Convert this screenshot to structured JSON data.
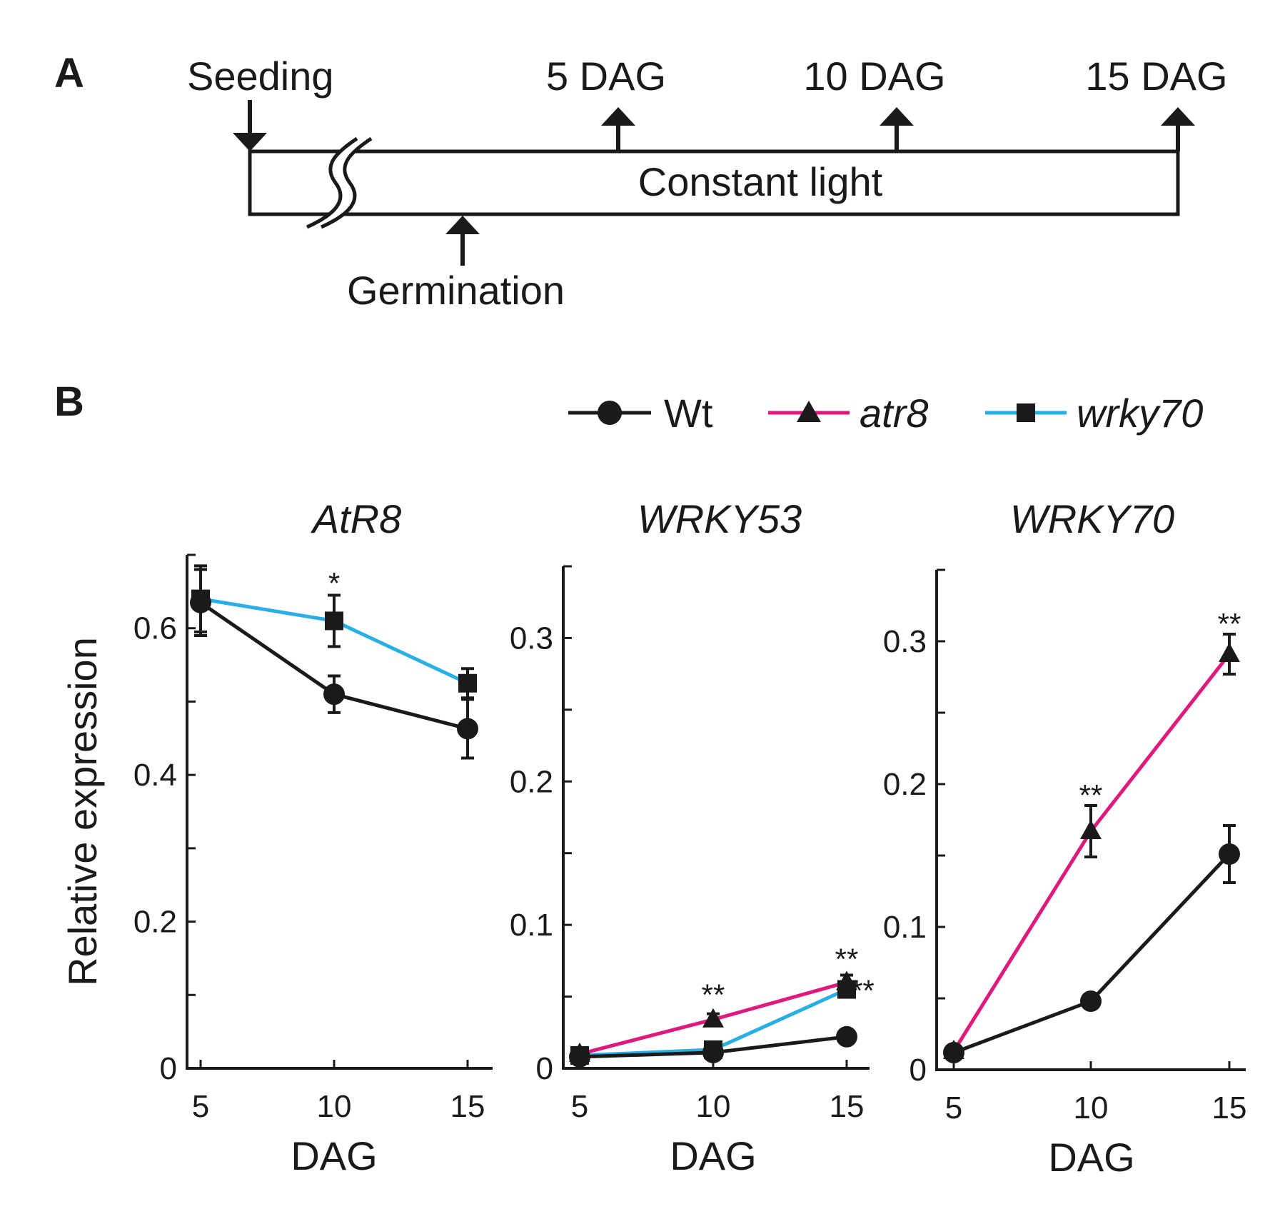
{
  "panel_a": {
    "letter": "A",
    "seeding_label": "Seeding",
    "germination_label": "Germination",
    "bar_label": "Constant light",
    "timepoints": [
      "5 DAG",
      "10 DAG",
      "15 DAG"
    ]
  },
  "panel_b": {
    "letter": "B",
    "legend": [
      {
        "name": "Wt",
        "italic": false
      },
      {
        "name": "atr8",
        "italic": true
      },
      {
        "name": "wrky70",
        "italic": true
      }
    ]
  },
  "colors": {
    "wt": "#1a1a1a",
    "atr8": "#e0197d",
    "wrky70": "#29aee6",
    "axis": "#1a1a1a"
  },
  "chart_data": [
    {
      "type": "line",
      "title": "AtR8",
      "xlabel": "DAG",
      "ylabel": "Relative expression",
      "x": [
        5,
        10,
        15
      ],
      "ylim": [
        0,
        0.7
      ],
      "yticks": [
        0,
        0.2,
        0.4,
        0.6
      ],
      "ytick_labels": [
        "0",
        "0.2",
        "0.4",
        "0.6"
      ],
      "series": [
        {
          "name": "wrky70",
          "values": [
            0.64,
            0.61,
            0.525
          ],
          "errors": [
            0.045,
            0.035,
            0.02
          ]
        },
        {
          "name": "Wt",
          "values": [
            0.635,
            0.51,
            0.463
          ],
          "errors": [
            0.045,
            0.025,
            0.04
          ]
        }
      ],
      "annotations": [
        {
          "x": 10,
          "y": 0.665,
          "text": "*"
        }
      ]
    },
    {
      "type": "line",
      "title": "WRKY53",
      "xlabel": "DAG",
      "ylabel": "",
      "x": [
        5,
        10,
        15
      ],
      "ylim": [
        0,
        0.35
      ],
      "yticks": [
        0,
        0.1,
        0.2,
        0.3
      ],
      "ytick_labels": [
        "0",
        "0.1",
        "0.2",
        "0.3"
      ],
      "series": [
        {
          "name": "atr8",
          "values": [
            0.01,
            0.034,
            0.06
          ],
          "errors": [
            0.004,
            0.004,
            0.005
          ]
        },
        {
          "name": "wrky70",
          "values": [
            0.009,
            0.013,
            0.055
          ],
          "errors": [
            0.004,
            0.004,
            0.004
          ]
        },
        {
          "name": "Wt",
          "values": [
            0.008,
            0.011,
            0.022
          ],
          "errors": [
            0.003,
            0.003,
            0.003
          ]
        }
      ],
      "annotations": [
        {
          "x": 10,
          "y": 0.053,
          "text": "**"
        },
        {
          "x": 15,
          "y": 0.078,
          "text": "**"
        },
        {
          "x": 15.6,
          "y": 0.056,
          "text": "**"
        }
      ]
    },
    {
      "type": "line",
      "title": "WRKY70",
      "xlabel": "DAG",
      "ylabel": "",
      "x": [
        5,
        10,
        15
      ],
      "ylim": [
        0,
        0.35
      ],
      "yticks": [
        0,
        0.1,
        0.2,
        0.3
      ],
      "ytick_labels": [
        "0",
        "0.1",
        "0.2",
        "0.3"
      ],
      "series": [
        {
          "name": "atr8",
          "values": [
            0.013,
            0.167,
            0.291
          ],
          "errors": [
            0.004,
            0.018,
            0.014
          ]
        },
        {
          "name": "Wt",
          "values": [
            0.012,
            0.048,
            0.151
          ],
          "errors": [
            0.004,
            0.004,
            0.02
          ]
        }
      ],
      "annotations": [
        {
          "x": 10,
          "y": 0.194,
          "text": "**"
        },
        {
          "x": 15,
          "y": 0.314,
          "text": "**"
        }
      ]
    }
  ]
}
